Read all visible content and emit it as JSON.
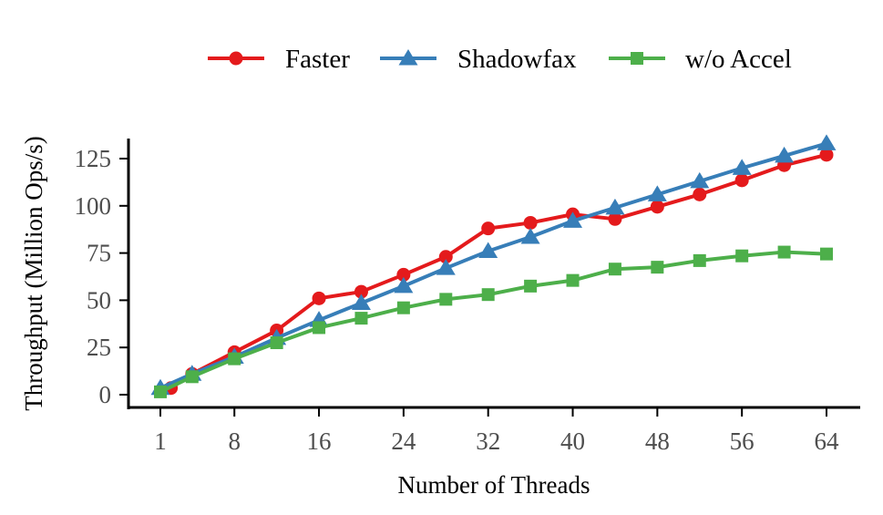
{
  "chart_data": {
    "type": "line",
    "xlabel": "Number of Threads",
    "ylabel": "Throughput (Million Ops/s)",
    "xlim": [
      1,
      64
    ],
    "ylim": [
      0,
      135
    ],
    "x_ticks": [
      1,
      8,
      16,
      24,
      32,
      40,
      48,
      56,
      64
    ],
    "y_ticks": [
      0,
      25,
      50,
      75,
      100,
      125
    ],
    "grid": false,
    "legend_position": "top",
    "series": [
      {
        "name": "Faster",
        "color": "#e41a1c",
        "marker": "circle",
        "x": [
          2,
          4,
          8,
          12,
          16,
          20,
          24,
          28,
          32,
          36,
          40,
          44,
          48,
          52,
          56,
          60,
          64
        ],
        "y": [
          3.5,
          11,
          22.5,
          34,
          51,
          54.5,
          63.5,
          73,
          88,
          91,
          95.5,
          93,
          99.5,
          106,
          113.5,
          121.5,
          127
        ]
      },
      {
        "name": "Shadowfax",
        "color": "#377eb8",
        "marker": "triangle",
        "x": [
          1,
          4,
          8,
          12,
          16,
          20,
          24,
          28,
          32,
          36,
          40,
          44,
          48,
          52,
          56,
          60,
          64
        ],
        "y": [
          3.5,
          11,
          20,
          30,
          39.5,
          48.5,
          57.5,
          67,
          76,
          83.5,
          92,
          99,
          106,
          113,
          120,
          126.5,
          133
        ]
      },
      {
        "name": "w/o Accel",
        "color": "#4daf4a",
        "marker": "square",
        "x": [
          1,
          4,
          8,
          12,
          16,
          20,
          24,
          28,
          32,
          36,
          40,
          44,
          48,
          52,
          56,
          60,
          64
        ],
        "y": [
          1.5,
          9.5,
          19,
          27.5,
          35.5,
          40.5,
          46,
          50.5,
          53,
          57.5,
          60.5,
          66.5,
          67.5,
          71,
          73.5,
          75.5,
          74.5
        ]
      }
    ]
  }
}
